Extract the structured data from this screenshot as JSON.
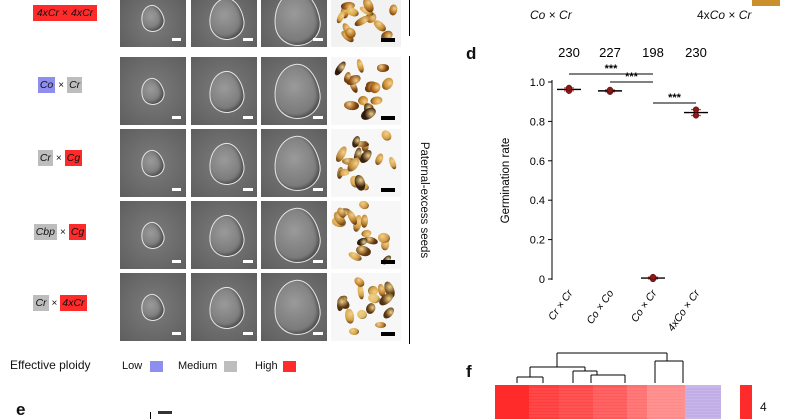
{
  "crosses": [
    {
      "parts": [
        {
          "text": "4xCr",
          "level": "high"
        },
        {
          "text": "4xCr",
          "level": "high"
        }
      ],
      "compact": true
    },
    {
      "parts": [
        {
          "text": "Co",
          "level": "low"
        },
        {
          "text": "Cr",
          "level": "med"
        }
      ]
    },
    {
      "parts": [
        {
          "text": "Cr",
          "level": "med"
        },
        {
          "text": "Cg",
          "level": "high"
        }
      ]
    },
    {
      "parts": [
        {
          "text": "Cbp",
          "level": "med"
        },
        {
          "text": "Cg",
          "level": "high"
        }
      ]
    },
    {
      "parts": [
        {
          "text": "Cr",
          "level": "med"
        },
        {
          "text": "4xCr",
          "level": "high"
        }
      ]
    }
  ],
  "cross_symbol": "×",
  "bracket_label": "Paternal-excess seeds",
  "legend": {
    "title": "Effective ploidy",
    "items": [
      {
        "label": "Low",
        "color": "#8e8ef0"
      },
      {
        "label": "Medium",
        "color": "#bdbdbd"
      },
      {
        "label": "High",
        "color": "#ff2b2b"
      }
    ]
  },
  "top_labels": [
    {
      "prefix": "",
      "a": "Co",
      "b": "Cr"
    },
    {
      "prefix": "4x",
      "a": "Co",
      "b": "Cr"
    }
  ],
  "panel_letters": {
    "d": "d",
    "e": "e",
    "f": "f"
  },
  "chart_data": {
    "type": "scatter",
    "ylabel": "Germination rate",
    "ylim": [
      0,
      1.0
    ],
    "yticks": [
      "0",
      "0.2",
      "0.4",
      "0.6",
      "0.8",
      "1.0"
    ],
    "categories": [
      "Cr × Cr",
      "Co × Co",
      "Co × Cr",
      "4xCo × Cr"
    ],
    "counts": [
      "230",
      "227",
      "198",
      "230"
    ],
    "points": [
      [
        0.955,
        0.97
      ],
      [
        0.95,
        0.96
      ],
      [
        0.0,
        0.01
      ],
      [
        0.83,
        0.86
      ]
    ],
    "means": [
      0.962,
      0.955,
      0.005,
      0.845
    ],
    "significance": [
      {
        "from": 0,
        "to": 2,
        "label": "***"
      },
      {
        "from": 1,
        "to": 2,
        "label": "***"
      },
      {
        "from": 2,
        "to": 3,
        "label": "***"
      }
    ]
  },
  "heatmap_scale_value": "4"
}
